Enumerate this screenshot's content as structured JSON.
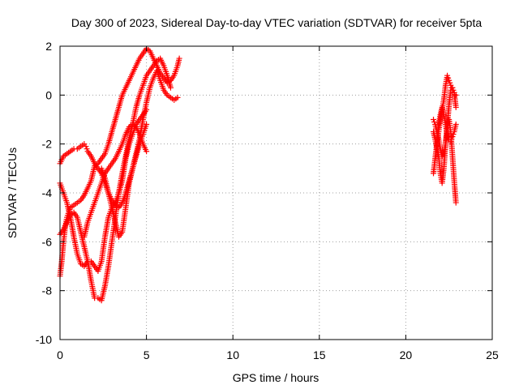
{
  "chart_data": {
    "type": "scatter",
    "title": "Day 300 of 2023, Sidereal Day-to-day VTEC variation (SDTVAR) for receiver 5pta",
    "xlabel": "GPS time / hours",
    "ylabel": "SDTVAR / TECUs",
    "xlim": [
      0,
      25
    ],
    "ylim": [
      -10,
      2
    ],
    "xticks": [
      0,
      5,
      10,
      15,
      20,
      25
    ],
    "yticks": [
      -10,
      -8,
      -6,
      -4,
      -2,
      0,
      2
    ],
    "xtick_labels": [
      "0",
      "5",
      "10",
      "15",
      "20",
      "25"
    ],
    "ytick_labels": [
      "-10",
      "-8",
      "-6",
      "-4",
      "-2",
      "0",
      "2"
    ],
    "grid": true,
    "marker": "+",
    "colors": {
      "series": "#ff0000",
      "grid": "#a0a0a0",
      "axis": "#000000"
    },
    "series": [
      {
        "x": [
          0.0,
          0.1,
          0.2,
          0.3,
          0.4,
          0.6,
          0.8,
          1.0,
          1.2,
          1.4,
          1.6,
          1.8,
          1.9,
          2.0,
          2.2,
          2.4,
          2.6,
          2.8,
          3.0,
          3.2,
          3.4,
          3.6,
          3.8,
          4.0,
          4.2,
          4.4,
          4.6,
          4.8,
          5.0,
          5.2,
          5.4,
          5.6,
          5.8,
          6.0,
          6.2,
          6.4,
          6.6,
          6.8,
          6.9
        ],
        "y": [
          -7.4,
          -6.8,
          -6.0,
          -5.4,
          -5.0,
          -4.6,
          -4.5,
          -4.4,
          -4.3,
          -4.1,
          -3.8,
          -3.5,
          -3.2,
          -2.9,
          -2.8,
          -2.6,
          -2.4,
          -2.0,
          -1.5,
          -1.0,
          -0.5,
          0.0,
          0.3,
          0.6,
          0.9,
          1.2,
          1.5,
          1.7,
          1.9,
          1.8,
          1.5,
          1.2,
          0.9,
          0.7,
          0.5,
          0.6,
          0.8,
          1.2,
          1.5
        ]
      },
      {
        "x": [
          0.0,
          0.2,
          0.4,
          0.6,
          0.8,
          1.0,
          1.2,
          1.4,
          1.5,
          1.6,
          1.8,
          2.0,
          2.2,
          2.4,
          2.6,
          2.8,
          3.0,
          3.2,
          3.4,
          3.6,
          3.8,
          4.0,
          4.2,
          4.4,
          4.6,
          4.8,
          5.0,
          5.2,
          5.4,
          5.6,
          5.8,
          6.0,
          6.2,
          6.4,
          6.6,
          6.8
        ],
        "y": [
          -2.8,
          -2.5,
          -2.4,
          -2.3,
          -2.2,
          -2.2,
          -2.1,
          -2.0,
          -2.1,
          -2.3,
          -2.5,
          -2.8,
          -3.0,
          -3.2,
          -3.6,
          -4.0,
          -4.3,
          -4.5,
          -4.6,
          -4.4,
          -4.0,
          -3.5,
          -3.0,
          -2.4,
          -1.8,
          -1.0,
          -0.3,
          0.3,
          0.7,
          1.0,
          0.6,
          0.2,
          0.0,
          -0.1,
          -0.2,
          -0.1
        ]
      },
      {
        "x": [
          0.0,
          0.2,
          0.4,
          0.6,
          0.8,
          1.0,
          1.2,
          1.4,
          1.6,
          1.8,
          2.0,
          2.2,
          2.4,
          2.6,
          2.8,
          3.0,
          3.2,
          3.4,
          3.6,
          3.8,
          4.0,
          4.2,
          4.4,
          4.6,
          4.8,
          5.0,
          5.2,
          5.4,
          5.6,
          5.8,
          6.0,
          6.2,
          6.4
        ],
        "y": [
          -5.7,
          -5.5,
          -5.2,
          -4.9,
          -4.8,
          -5.0,
          -5.6,
          -6.2,
          -6.8,
          -7.6,
          -8.3,
          -8.3,
          -8.4,
          -7.8,
          -7.0,
          -6.0,
          -5.0,
          -4.0,
          -3.2,
          -2.5,
          -1.8,
          -1.2,
          -0.5,
          0.0,
          0.4,
          0.8,
          1.0,
          1.2,
          1.4,
          1.5,
          1.2,
          0.8,
          0.3
        ]
      },
      {
        "x": [
          0.0,
          0.2,
          0.4,
          0.6,
          0.8,
          1.0,
          1.2,
          1.4,
          1.6,
          1.8,
          2.0,
          2.2,
          2.4,
          2.6,
          2.8,
          3.0,
          3.2,
          3.4,
          3.6,
          3.8,
          4.0,
          4.2,
          4.4,
          4.6,
          4.8,
          5.0
        ],
        "y": [
          -3.6,
          -4.0,
          -4.4,
          -5.0,
          -5.8,
          -6.5,
          -6.9,
          -7.0,
          -6.8,
          -6.8,
          -7.0,
          -7.2,
          -6.8,
          -5.8,
          -5.0,
          -4.6,
          -4.4,
          -4.0,
          -3.5,
          -2.6,
          -2.0,
          -1.6,
          -1.2,
          -1.0,
          -0.8,
          -0.6
        ]
      },
      {
        "x": [
          1.4,
          1.6,
          1.8,
          2.0,
          2.2,
          2.4,
          2.6,
          2.8,
          3.0,
          3.2,
          3.4,
          3.6,
          3.8,
          4.0,
          4.2,
          4.4,
          4.6,
          4.8,
          5.0
        ],
        "y": [
          -5.8,
          -5.2,
          -4.8,
          -4.4,
          -4.0,
          -3.6,
          -3.2,
          -3.0,
          -2.8,
          -2.6,
          -2.3,
          -2.0,
          -1.6,
          -1.3,
          -1.2,
          -1.3,
          -1.6,
          -2.0,
          -2.3
        ]
      },
      {
        "x": [
          2.4,
          2.6,
          2.8,
          3.0,
          3.2,
          3.4,
          3.6,
          3.8,
          4.0,
          4.2,
          4.4,
          4.6,
          4.8,
          5.0
        ],
        "y": [
          -3.0,
          -3.4,
          -4.0,
          -4.6,
          -5.2,
          -5.8,
          -5.6,
          -4.6,
          -3.6,
          -3.0,
          -2.5,
          -2.0,
          -1.6,
          -1.2
        ]
      },
      {
        "x": [
          21.6,
          21.7,
          21.8,
          21.9,
          22.0,
          22.1,
          22.2,
          22.3,
          22.4,
          22.5,
          22.6,
          22.7,
          22.8,
          22.9
        ],
        "y": [
          -3.2,
          -2.6,
          -2.0,
          -1.5,
          -1.0,
          -0.6,
          -0.2,
          0.4,
          0.8,
          0.6,
          0.4,
          0.2,
          0.1,
          0.0
        ]
      },
      {
        "x": [
          21.6,
          21.7,
          21.8,
          21.9,
          22.0,
          22.1,
          22.2,
          22.3,
          22.4,
          22.5,
          22.6,
          22.7,
          22.8,
          22.9
        ],
        "y": [
          -1.0,
          -1.2,
          -1.5,
          -1.8,
          -2.2,
          -2.5,
          -2.4,
          -2.0,
          -1.5,
          -1.0,
          -1.5,
          -2.5,
          -3.5,
          -4.4
        ]
      },
      {
        "x": [
          21.6,
          21.7,
          21.8,
          21.9,
          22.0,
          22.1,
          22.2,
          22.3,
          22.4,
          22.5,
          22.6,
          22.7,
          22.8,
          22.9
        ],
        "y": [
          -1.5,
          -1.8,
          -2.2,
          -2.5,
          -3.2,
          -3.6,
          -3.0,
          -2.0,
          -1.2,
          -0.4,
          0.2,
          0.3,
          0.1,
          -0.5
        ]
      },
      {
        "x": [
          21.8,
          21.9,
          22.0,
          22.1,
          22.2,
          22.3,
          22.4,
          22.5,
          22.6,
          22.7,
          22.8,
          22.9
        ],
        "y": [
          -1.8,
          -1.2,
          -0.8,
          -0.5,
          -0.8,
          -1.2,
          -1.6,
          -1.8,
          -1.9,
          -1.7,
          -1.5,
          -1.2
        ]
      }
    ]
  }
}
